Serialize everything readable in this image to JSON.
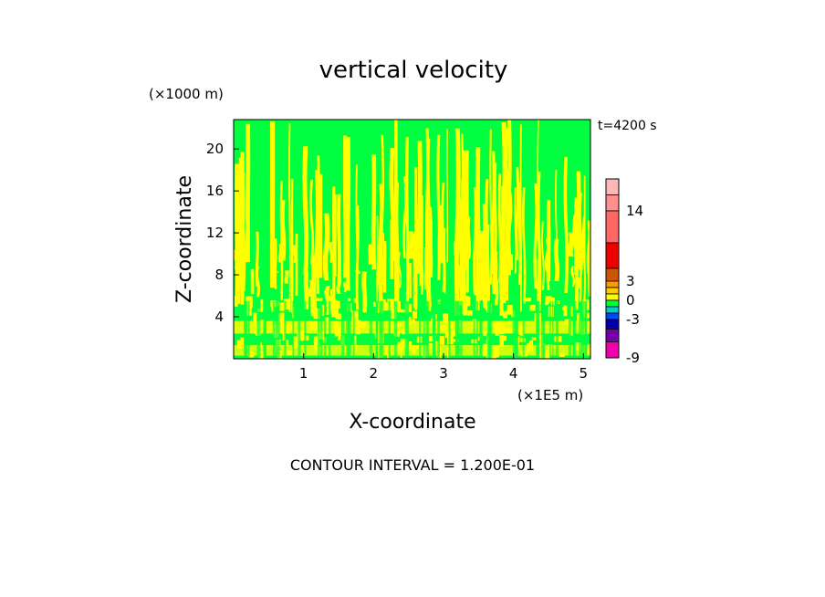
{
  "chart_data": {
    "type": "heatmap",
    "title": "vertical velocity",
    "xlabel": "X-coordinate",
    "ylabel": "Z-coordinate",
    "x_scale_label": "(×1E5 m)",
    "y_scale_label": "(×1000 m)",
    "time_label": "t=4200 s",
    "footer": "CONTOUR INTERVAL = 1.200E-01",
    "xlim": [
      0,
      5.1
    ],
    "ylim": [
      0,
      22.8
    ],
    "x_ticks": [
      "1",
      "2",
      "3",
      "4",
      "5"
    ],
    "y_ticks": [
      "4",
      "8",
      "12",
      "16",
      "20"
    ],
    "field_colors": {
      "positive": "#00ff40",
      "near_zero": "#ffff00"
    },
    "colorbar": {
      "tick_labels": [
        "14",
        "3",
        "0",
        "-3",
        "-9"
      ],
      "segments": [
        {
          "from": 16.5,
          "to": 19.0,
          "color": "#ffb8b8"
        },
        {
          "from": 14.0,
          "to": 16.5,
          "color": "#ff9090"
        },
        {
          "from": 9.0,
          "to": 14.0,
          "color": "#ff6666"
        },
        {
          "from": 5.0,
          "to": 9.0,
          "color": "#ee0000"
        },
        {
          "from": 3.0,
          "to": 5.0,
          "color": "#cc5500"
        },
        {
          "from": 2.0,
          "to": 3.0,
          "color": "#ff9900"
        },
        {
          "from": 1.0,
          "to": 2.0,
          "color": "#ffcc00"
        },
        {
          "from": 0.0,
          "to": 1.0,
          "color": "#ffff00"
        },
        {
          "from": -1.0,
          "to": 0.0,
          "color": "#00ff40"
        },
        {
          "from": -2.0,
          "to": -1.0,
          "color": "#00cccc"
        },
        {
          "from": -3.0,
          "to": -2.0,
          "color": "#0044ff"
        },
        {
          "from": -4.5,
          "to": -3.0,
          "color": "#0000aa"
        },
        {
          "from": -6.5,
          "to": -4.5,
          "color": "#7700aa"
        },
        {
          "from": -9.0,
          "to": -6.5,
          "color": "#ee00aa"
        }
      ],
      "range": [
        -9,
        19
      ]
    }
  }
}
